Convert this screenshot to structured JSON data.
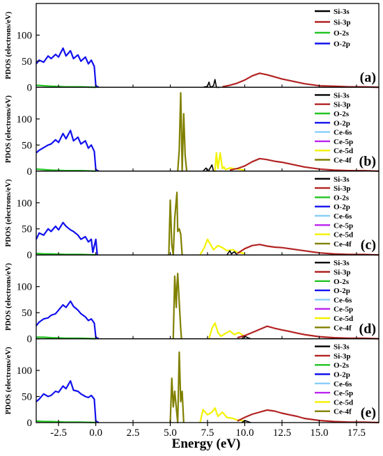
{
  "chart_data": {
    "type": "line",
    "xlabel": "Energy (eV)",
    "ylabel": "PDOS (electrons/eV)",
    "xlim": [
      -4.0,
      19.0
    ],
    "ylim": [
      0,
      150
    ],
    "xticks": [
      -2.5,
      0.0,
      2.5,
      5.0,
      7.5,
      10.0,
      12.5,
      15.0,
      17.5
    ],
    "xtick_labels": [
      "-2.5",
      "0.0",
      "2.5",
      "5.0",
      "7.5",
      "10.0",
      "12.5",
      "15.0",
      "17.5"
    ],
    "yticks": [
      0,
      50,
      100
    ],
    "ytick_labels": [
      "0",
      "50",
      "100"
    ],
    "legend_position": "top-right",
    "colors": {
      "Si-3s": "#000000",
      "Si-3p": "#b22222",
      "O-2s": "#22c422",
      "O-2p": "#1010ee",
      "Ce-6s": "#87cefa",
      "Ce-5p": "#bb22ee",
      "Ce-5d": "#f2f200",
      "Ce-4f": "#808000"
    },
    "panels": [
      {
        "label": "(a)",
        "legend": [
          "Si-3s",
          "Si-3p",
          "O-2s",
          "O-2p"
        ],
        "series": [
          {
            "name": "O-2p",
            "x": [
              -4.0,
              -3.8,
              -3.5,
              -3.2,
              -3.0,
              -2.7,
              -2.5,
              -2.2,
              -2.0,
              -1.7,
              -1.5,
              -1.2,
              -1.0,
              -0.7,
              -0.5,
              -0.3,
              -0.1,
              0.0,
              0.2
            ],
            "y": [
              45,
              52,
              48,
              60,
              55,
              63,
              58,
              75,
              60,
              70,
              55,
              62,
              50,
              58,
              45,
              52,
              40,
              3,
              0
            ]
          },
          {
            "name": "Si-3s",
            "x": [
              7.2,
              7.5,
              7.6,
              7.7,
              7.9,
              8.0,
              8.1,
              8.3
            ],
            "y": [
              0,
              2,
              10,
              0,
              3,
              15,
              0,
              0
            ]
          },
          {
            "name": "Si-3p",
            "x": [
              8.5,
              9.0,
              9.5,
              10.0,
              10.5,
              11.0,
              11.5,
              12.0,
              12.5,
              13.0,
              13.5,
              14.0,
              14.5,
              15.0,
              16.0,
              17.0,
              18.0,
              19.0
            ],
            "y": [
              1,
              4,
              8,
              14,
              22,
              27,
              24,
              20,
              16,
              13,
              10,
              7,
              5,
              3,
              2,
              1,
              1,
              0
            ]
          },
          {
            "name": "O-2s",
            "x": [
              -4.0,
              -3.5,
              -3.0,
              -2.0,
              -1.0,
              0.0
            ],
            "y": [
              4,
              3,
              2,
              1,
              1,
              0
            ]
          }
        ]
      },
      {
        "label": "(b)",
        "legend": [
          "Si-3s",
          "Si-3p",
          "O-2s",
          "O-2p",
          "Ce-6s",
          "Ce-5p",
          "Ce-5d",
          "Ce-4f"
        ],
        "series": [
          {
            "name": "O-2p",
            "x": [
              -4.0,
              -3.8,
              -3.5,
              -3.2,
              -3.0,
              -2.7,
              -2.5,
              -2.2,
              -2.0,
              -1.7,
              -1.5,
              -1.2,
              -1.0,
              -0.7,
              -0.5,
              -0.3,
              -0.1,
              0.0,
              0.2
            ],
            "y": [
              35,
              40,
              45,
              50,
              52,
              60,
              55,
              72,
              62,
              78,
              58,
              65,
              52,
              58,
              44,
              50,
              38,
              3,
              0
            ]
          },
          {
            "name": "Ce-4f",
            "x": [
              5.5,
              5.6,
              5.7,
              5.75,
              5.8,
              5.9,
              6.0,
              6.1
            ],
            "y": [
              0,
              40,
              150,
              80,
              0,
              110,
              30,
              0
            ]
          },
          {
            "name": "Ce-5d",
            "x": [
              8.0,
              8.1,
              8.2,
              8.35,
              8.5,
              8.6,
              8.7,
              9.0,
              9.5,
              10.0
            ],
            "y": [
              0,
              35,
              5,
              35,
              5,
              8,
              3,
              6,
              4,
              2
            ]
          },
          {
            "name": "Si-3s",
            "x": [
              7.2,
              7.4,
              7.5,
              7.6,
              7.8,
              7.9,
              8.0
            ],
            "y": [
              0,
              6,
              0,
              2,
              12,
              0,
              0
            ]
          },
          {
            "name": "Si-3p",
            "x": [
              9.0,
              9.5,
              10.0,
              10.5,
              11.0,
              11.5,
              12.0,
              12.5,
              13.0,
              13.5,
              14.0,
              14.5,
              15.0,
              16.0,
              17.0,
              18.0,
              19.0
            ],
            "y": [
              2,
              5,
              10,
              18,
              24,
              22,
              19,
              17,
              14,
              11,
              8,
              6,
              4,
              2,
              1,
              1,
              0
            ]
          },
          {
            "name": "O-2s",
            "x": [
              -4.0,
              -3.5,
              -3.0,
              -2.0,
              -1.0,
              0.0
            ],
            "y": [
              4,
              3,
              2,
              1,
              1,
              0
            ]
          }
        ]
      },
      {
        "label": "(c)",
        "legend": [
          "Si-3s",
          "Si-3p",
          "O-2s",
          "O-2p",
          "Ce-6s",
          "Ce-5p",
          "Ce-5d",
          "Ce-4f"
        ],
        "series": [
          {
            "name": "O-2p",
            "x": [
              -4.0,
              -3.8,
              -3.5,
              -3.2,
              -3.0,
              -2.7,
              -2.5,
              -2.2,
              -2.0,
              -1.7,
              -1.5,
              -1.2,
              -1.0,
              -0.7,
              -0.5,
              -0.3,
              -0.2,
              0.0,
              0.1
            ],
            "y": [
              30,
              42,
              38,
              50,
              45,
              55,
              48,
              62,
              55,
              48,
              45,
              38,
              30,
              35,
              25,
              30,
              5,
              30,
              0
            ]
          },
          {
            "name": "Ce-4f",
            "x": [
              4.9,
              5.0,
              5.1,
              5.2,
              5.3,
              5.45,
              5.5,
              5.6,
              5.7,
              5.8
            ],
            "y": [
              0,
              105,
              20,
              0,
              70,
              120,
              45,
              50,
              40,
              0
            ]
          },
          {
            "name": "Ce-5d",
            "x": [
              7.0,
              7.3,
              7.5,
              7.7,
              7.9,
              8.2,
              8.5,
              8.8,
              9.2,
              9.5,
              10.0
            ],
            "y": [
              0,
              15,
              30,
              20,
              10,
              18,
              14,
              8,
              10,
              5,
              3
            ]
          },
          {
            "name": "Si-3s",
            "x": [
              8.8,
              9.0,
              9.1,
              9.3,
              9.5
            ],
            "y": [
              0,
              8,
              2,
              6,
              0
            ]
          },
          {
            "name": "Si-3p",
            "x": [
              9.5,
              10.0,
              10.5,
              11.0,
              11.5,
              12.0,
              12.5,
              13.0,
              13.5,
              14.0,
              14.5,
              15.0,
              16.0,
              17.0,
              18.0,
              19.0
            ],
            "y": [
              3,
              12,
              18,
              20,
              17,
              15,
              14,
              12,
              10,
              8,
              6,
              4,
              2,
              1,
              1,
              0
            ]
          },
          {
            "name": "O-2s",
            "x": [
              -4.0,
              -3.5,
              -3.0,
              -2.0,
              -1.0,
              0.0
            ],
            "y": [
              3,
              2,
              2,
              1,
              1,
              0
            ]
          }
        ]
      },
      {
        "label": "(d)",
        "legend": [
          "Si-3s",
          "Si-3p",
          "O-2s",
          "O-2p",
          "Ce-6s",
          "Ce-5p",
          "Ce-5d",
          "Ce-4f"
        ],
        "series": [
          {
            "name": "O-2p",
            "x": [
              -4.0,
              -3.8,
              -3.5,
              -3.2,
              -3.0,
              -2.7,
              -2.5,
              -2.2,
              -2.0,
              -1.7,
              -1.5,
              -1.2,
              -1.0,
              -0.7,
              -0.5,
              -0.3,
              -0.1,
              0.0,
              0.2
            ],
            "y": [
              25,
              32,
              38,
              40,
              45,
              48,
              55,
              65,
              60,
              72,
              62,
              55,
              48,
              42,
              35,
              38,
              30,
              3,
              0
            ]
          },
          {
            "name": "Ce-4f",
            "x": [
              5.2,
              5.3,
              5.4,
              5.45,
              5.5,
              5.6,
              5.7,
              5.75
            ],
            "y": [
              0,
              120,
              60,
              100,
              125,
              70,
              20,
              0
            ]
          },
          {
            "name": "Ce-5d",
            "x": [
              7.6,
              7.8,
              8.0,
              8.2,
              8.4,
              8.7,
              9.0,
              9.3,
              9.6,
              10.0
            ],
            "y": [
              0,
              20,
              30,
              12,
              5,
              10,
              15,
              8,
              12,
              4
            ]
          },
          {
            "name": "Si-3s",
            "x": [
              9.8,
              10.0,
              10.2,
              10.4
            ],
            "y": [
              0,
              5,
              2,
              0
            ]
          },
          {
            "name": "Si-3p",
            "x": [
              9.5,
              10.0,
              10.5,
              11.0,
              11.5,
              12.0,
              12.5,
              13.0,
              13.5,
              14.0,
              14.5,
              15.0,
              16.0,
              17.0,
              18.0,
              19.0
            ],
            "y": [
              2,
              6,
              12,
              18,
              24,
              20,
              17,
              14,
              11,
              8,
              6,
              4,
              2,
              1,
              1,
              0
            ]
          },
          {
            "name": "O-2s",
            "x": [
              -4.0,
              -3.5,
              -3.0,
              -2.0,
              -1.0,
              0.0
            ],
            "y": [
              3,
              3,
              2,
              1,
              1,
              0
            ]
          }
        ]
      },
      {
        "label": "(e)",
        "legend": [
          "Si-3s",
          "Si-3p",
          "O-2s",
          "O-2p",
          "Ce-6s",
          "Ce-5p",
          "Ce-5d",
          "Ce-4f"
        ],
        "series": [
          {
            "name": "O-2p",
            "x": [
              -4.0,
              -3.8,
              -3.5,
              -3.2,
              -3.0,
              -2.7,
              -2.5,
              -2.2,
              -2.0,
              -1.7,
              -1.5,
              -1.2,
              -1.0,
              -0.7,
              -0.5,
              -0.3,
              -0.1,
              0.0,
              0.2
            ],
            "y": [
              40,
              45,
              55,
              50,
              52,
              60,
              58,
              70,
              65,
              80,
              62,
              60,
              55,
              50,
              48,
              52,
              45,
              3,
              0
            ]
          },
          {
            "name": "Ce-4f",
            "x": [
              5.0,
              5.1,
              5.2,
              5.3,
              5.5,
              5.6,
              5.7,
              5.8,
              5.9
            ],
            "y": [
              0,
              85,
              30,
              60,
              0,
              135,
              40,
              60,
              0
            ]
          },
          {
            "name": "Ce-5d",
            "x": [
              7.0,
              7.2,
              7.5,
              7.8,
              8.0,
              8.2,
              8.5,
              8.8,
              9.2,
              9.5,
              10.0
            ],
            "y": [
              0,
              25,
              15,
              20,
              28,
              12,
              20,
              10,
              8,
              5,
              3
            ]
          },
          {
            "name": "Si-3s",
            "x": [
              9.8,
              10.0,
              10.2,
              10.4
            ],
            "y": [
              0,
              4,
              2,
              0
            ]
          },
          {
            "name": "Si-3p",
            "x": [
              9.5,
              10.0,
              10.5,
              11.0,
              11.5,
              12.0,
              12.5,
              13.0,
              13.5,
              14.0,
              14.5,
              15.0,
              16.0,
              17.0,
              18.0,
              19.0
            ],
            "y": [
              3,
              10,
              16,
              20,
              24,
              22,
              18,
              15,
              12,
              8,
              6,
              4,
              2,
              1,
              1,
              0
            ]
          },
          {
            "name": "O-2s",
            "x": [
              -4.0,
              -3.5,
              -3.0,
              -2.0,
              -1.0,
              0.0
            ],
            "y": [
              3,
              2,
              2,
              1,
              1,
              0
            ]
          }
        ]
      }
    ]
  }
}
